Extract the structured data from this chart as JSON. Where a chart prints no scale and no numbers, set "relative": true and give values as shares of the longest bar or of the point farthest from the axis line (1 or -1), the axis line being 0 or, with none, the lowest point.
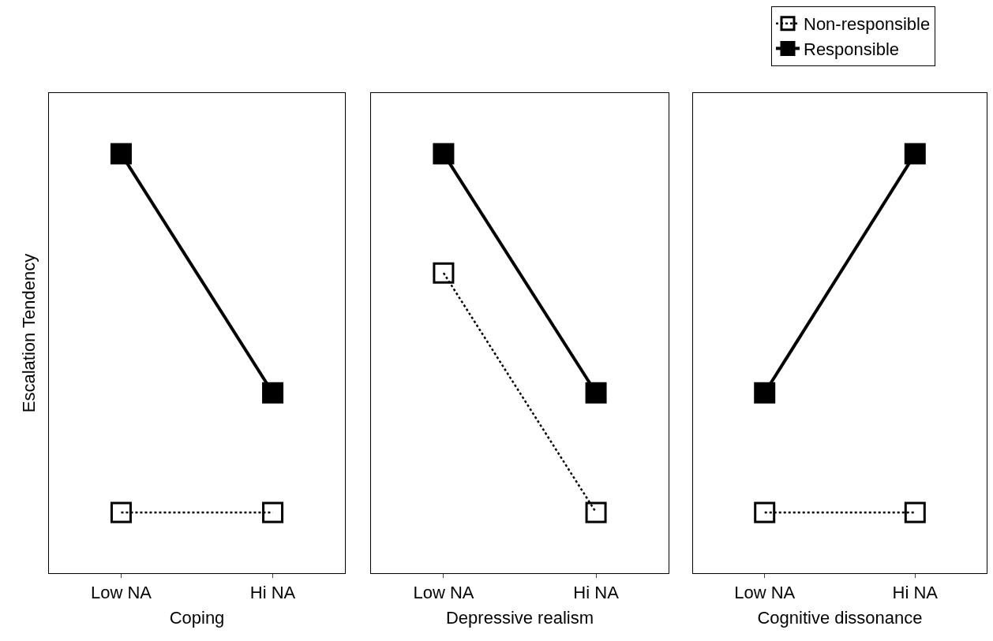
{
  "chart_data": [
    {
      "type": "line",
      "relative": true,
      "ylabel": "Escalation Tendency",
      "xlabel": "Coping",
      "categories": [
        "Low NA",
        "Hi NA"
      ],
      "marker": "square",
      "tick_labels": "x",
      "series": [
        {
          "color": "#000000",
          "line_style": "dotted",
          "values": [
            0.145,
            0.145
          ]
        },
        {
          "color": "#000000",
          "line_style": "solid",
          "values": [
            1,
            0.43
          ]
        }
      ]
    },
    {
      "type": "line",
      "relative": true,
      "xlabel": "Depressive realism",
      "categories": [
        "Low NA",
        "Hi NA"
      ],
      "marker": "square",
      "tick_labels": "x",
      "series": [
        {
          "color": "#000000",
          "line_style": "dotted",
          "values": [
            0.716,
            0.145
          ]
        },
        {
          "color": "#000000",
          "line_style": "solid",
          "values": [
            1,
            0.43
          ]
        }
      ]
    },
    {
      "type": "line",
      "relative": true,
      "xlabel": "Cognitive dissonance",
      "categories": [
        "Low NA",
        "Hi NA"
      ],
      "marker": "square",
      "tick_labels": "x",
      "legend": "top right",
      "series": [
        {
          "name": "Non-responsible",
          "color": "#000000",
          "line_style": "dotted",
          "values": [
            0.145,
            0.145
          ]
        },
        {
          "name": "Responsible",
          "color": "#000000",
          "line_style": "solid",
          "values": [
            0.43,
            1
          ]
        }
      ]
    }
  ]
}
